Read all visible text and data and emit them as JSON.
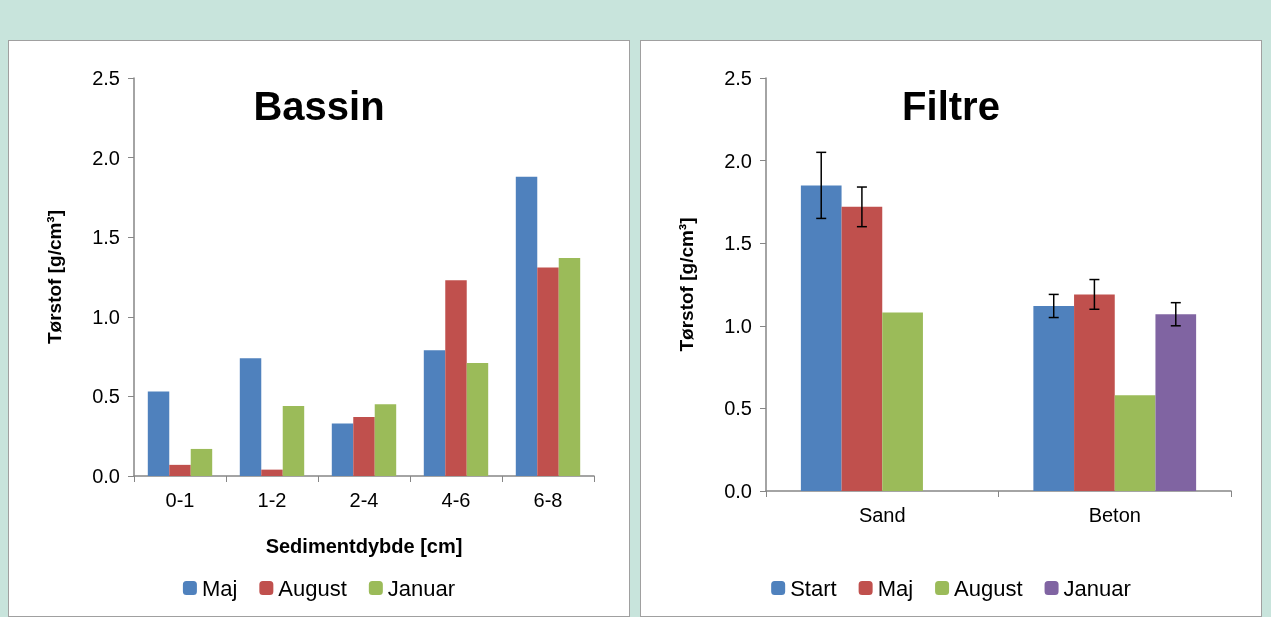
{
  "chart_data": [
    {
      "type": "bar",
      "title": "Bassin",
      "xlabel": "Sedimentdybde [cm]",
      "ylabel": "Tørstof [g/cm³]",
      "categories": [
        "0-1",
        "1-2",
        "2-4",
        "4-6",
        "6-8"
      ],
      "series": [
        {
          "name": "Maj",
          "color": "#4f81bd",
          "values": [
            0.53,
            0.74,
            0.33,
            0.79,
            1.88
          ]
        },
        {
          "name": "August",
          "color": "#c0504d",
          "values": [
            0.07,
            0.04,
            0.37,
            1.23,
            1.31
          ]
        },
        {
          "name": "Januar",
          "color": "#9bbb59",
          "values": [
            0.17,
            0.44,
            0.45,
            0.71,
            1.37
          ]
        }
      ],
      "ylim": [
        0,
        2.5
      ],
      "yticks": [
        {
          "value": 0,
          "label": "0.0"
        },
        {
          "value": 0.5,
          "label": "0.5"
        },
        {
          "value": 1,
          "label": "1.0"
        },
        {
          "value": 1.5,
          "label": "1.5"
        },
        {
          "value": 2,
          "label": "2.0"
        },
        {
          "value": 2.5,
          "label": "2.5"
        }
      ],
      "legend": "bottom"
    },
    {
      "type": "bar",
      "title": "Filtre",
      "ylabel": "Tørstof [g/cm³]",
      "categories": [
        "Sand",
        "Beton"
      ],
      "series": [
        {
          "name": "Start",
          "color": "#4f81bd",
          "values": [
            1.85,
            1.12
          ],
          "errors": [
            0.2,
            0.07
          ]
        },
        {
          "name": "Maj",
          "color": "#c0504d",
          "values": [
            1.72,
            1.19
          ],
          "errors": [
            0.12,
            0.09
          ]
        },
        {
          "name": "August",
          "color": "#9bbb59",
          "values": [
            1.08,
            0.58
          ]
        },
        {
          "name": "Januar",
          "color": "#8064a2",
          "values": [
            null,
            1.07
          ],
          "errors": [
            null,
            0.07
          ]
        }
      ],
      "ylim": [
        0,
        2.5
      ],
      "yticks": [
        {
          "value": 0,
          "label": "0.0"
        },
        {
          "value": 0.5,
          "label": "0.5"
        },
        {
          "value": 1,
          "label": "1.0"
        },
        {
          "value": 1.5,
          "label": "1.5"
        },
        {
          "value": 2,
          "label": "2.0"
        },
        {
          "value": 2.5,
          "label": "2.5"
        }
      ],
      "legend": "bottom"
    }
  ]
}
